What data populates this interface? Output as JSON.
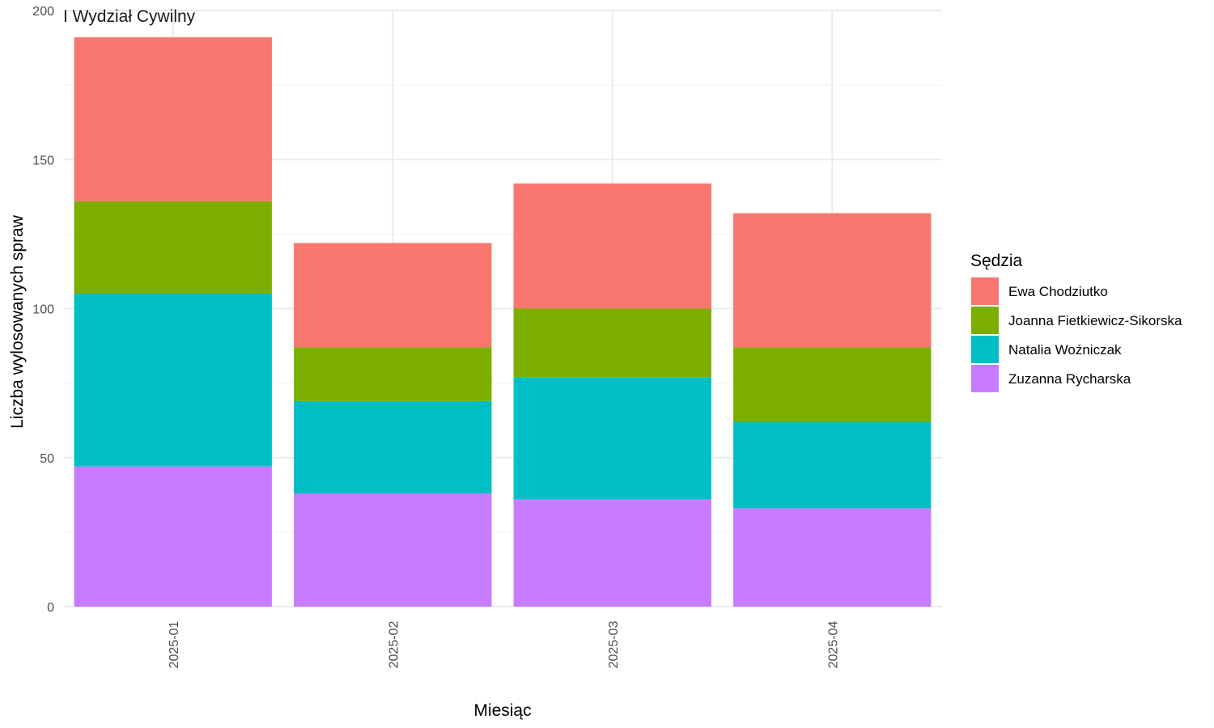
{
  "chart_data": {
    "type": "bar",
    "stacked": true,
    "facet_title": "I Wydział Cywilny",
    "xlabel": "Miesiąc",
    "ylabel": "Liczba wylosowanych spraw",
    "ylim": [
      0,
      200
    ],
    "yticks": [
      0,
      50,
      100,
      150,
      200
    ],
    "categories": [
      "2025-01",
      "2025-02",
      "2025-03",
      "2025-04"
    ],
    "grid": true,
    "legend": {
      "title": "Sędzia",
      "position": "right"
    },
    "series": [
      {
        "name": "Ewa Chodziutko",
        "color": "#F8766D",
        "values": [
          55,
          35,
          42,
          45
        ]
      },
      {
        "name": "Joanna Fietkiewicz-Sikorska",
        "color": "#7CAE00",
        "values": [
          31,
          18,
          23,
          25
        ]
      },
      {
        "name": "Natalia Woźniczak",
        "color": "#00BFC4",
        "values": [
          58,
          31,
          41,
          29
        ]
      },
      {
        "name": "Zuzanna Rycharska",
        "color": "#C77CFF",
        "values": [
          47,
          38,
          36,
          33
        ]
      }
    ]
  }
}
